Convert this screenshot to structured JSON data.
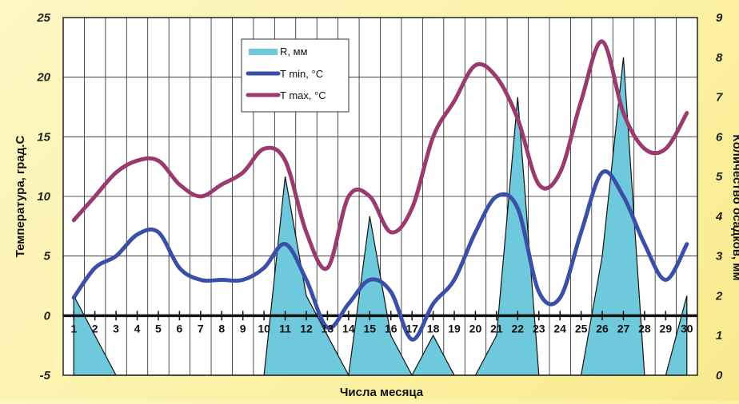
{
  "chart_data": {
    "type": "line",
    "xlabel": "Числа месяца",
    "ylabel_left": "Температура, град.С",
    "ylabel_right": "Количество осадков, мм",
    "x": [
      "1",
      "2",
      "3",
      "4",
      "5",
      "6",
      "7",
      "8",
      "9",
      "10",
      "11",
      "12",
      "13",
      "14",
      "15",
      "16",
      "17",
      "18",
      "19",
      "20",
      "21",
      "22",
      "23",
      "24",
      "25",
      "26",
      "27",
      "28",
      "29",
      "30"
    ],
    "ylim_left": [
      -5,
      25
    ],
    "yticks_left": [
      -5,
      0,
      5,
      10,
      15,
      20,
      25
    ],
    "ylim_right": [
      0,
      9
    ],
    "yticks_right": [
      0,
      1,
      2,
      3,
      4,
      5,
      6,
      7,
      8,
      9
    ],
    "grid": true,
    "legend_position": "top-center",
    "series": [
      {
        "name": "R, мм",
        "axis": "right",
        "kind": "area",
        "color": "#6ec9dc",
        "values": [
          2,
          1,
          0,
          0,
          0,
          0,
          0,
          0,
          0,
          0,
          5,
          2,
          1,
          0,
          4.0,
          1,
          0,
          1,
          0,
          0,
          1,
          7,
          0,
          0,
          0,
          3,
          8,
          0,
          0,
          2
        ]
      },
      {
        "name": "T min, °C",
        "axis": "left",
        "kind": "line",
        "color": "#3a50a8",
        "values": [
          1.5,
          4.0,
          5.0,
          6.8,
          7.0,
          4.0,
          3.0,
          3.0,
          3.0,
          4.0,
          6.0,
          3.0,
          -1.0,
          1.0,
          3.0,
          2.0,
          -2.0,
          1.0,
          3.0,
          7.0,
          10.0,
          9.0,
          2.0,
          1.5,
          7.0,
          12.0,
          10.0,
          6.0,
          3.0,
          6.0
        ]
      },
      {
        "name": "T max, °C",
        "axis": "left",
        "kind": "line",
        "color": "#9b3a6e",
        "values": [
          8.0,
          10.0,
          12.0,
          13.0,
          13.0,
          11.0,
          10.0,
          11.0,
          12.0,
          14.0,
          13.0,
          7.0,
          4.0,
          10.0,
          10.0,
          7.0,
          9.0,
          15.0,
          18.0,
          21.0,
          20.0,
          16.5,
          11.0,
          12.0,
          18.0,
          23.0,
          17.0,
          14.0,
          14.0,
          17.0
        ]
      }
    ]
  }
}
